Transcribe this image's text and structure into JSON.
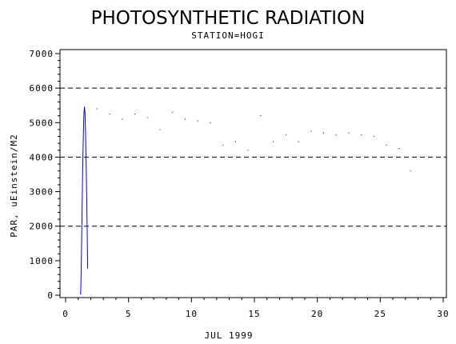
{
  "chart_data": {
    "type": "line",
    "title": "PHOTOSYNTHETIC RADIATION",
    "subtitle": "STATION=HOGI",
    "xlabel": "JUL 1999",
    "ylabel": "PAR, uEinstein/M2",
    "xlim": [
      0,
      30
    ],
    "ylim": [
      0,
      7000
    ],
    "xticks": [
      "0",
      "5",
      "10",
      "15",
      "20",
      "25",
      "30"
    ],
    "yticks": [
      "0",
      "1000",
      "2000",
      "3000",
      "4000",
      "5000",
      "6000",
      "7000"
    ],
    "reference_lines": [
      2000,
      4000,
      6000
    ],
    "grid": false,
    "series_color": "#0000ff",
    "daily_peaks": [
      {
        "day": 1.5,
        "value": 5450
      },
      {
        "day": 2.5,
        "value": 5400
      },
      {
        "day": 3.5,
        "value": 5250
      },
      {
        "day": 4.5,
        "value": 5100
      },
      {
        "day": 5.5,
        "value": 5250
      },
      {
        "day": 6.5,
        "value": 5150
      },
      {
        "day": 7.5,
        "value": 4800
      },
      {
        "day": 8.5,
        "value": 5300
      },
      {
        "day": 9.5,
        "value": 5100
      },
      {
        "day": 10.5,
        "value": 5050
      },
      {
        "day": 11.5,
        "value": 5000
      },
      {
        "day": 12.5,
        "value": 4350
      },
      {
        "day": 13.5,
        "value": 4450
      },
      {
        "day": 14.5,
        "value": 4200
      },
      {
        "day": 15.5,
        "value": 5200
      },
      {
        "day": 16.5,
        "value": 4450
      },
      {
        "day": 17.5,
        "value": 4650
      },
      {
        "day": 18.5,
        "value": 4450
      },
      {
        "day": 19.5,
        "value": 4750
      },
      {
        "day": 20.5,
        "value": 4700
      },
      {
        "day": 21.5,
        "value": 4650
      },
      {
        "day": 22.5,
        "value": 4700
      },
      {
        "day": 23.5,
        "value": 4650
      },
      {
        "day": 24.5,
        "value": 4600
      },
      {
        "day": 25.5,
        "value": 4350
      },
      {
        "day": 26.5,
        "value": 4250
      },
      {
        "day": 27.4,
        "value": 3600
      }
    ]
  }
}
